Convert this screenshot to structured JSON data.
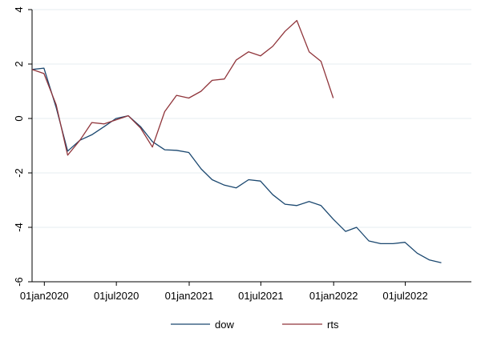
{
  "chart_data": {
    "type": "line",
    "title": "",
    "xlabel": "",
    "ylabel": "",
    "xlim": [
      "2019-12-01",
      "2022-12-15"
    ],
    "ylim": [
      -6,
      4
    ],
    "yticks": [
      -6,
      -4,
      -2,
      0,
      2,
      4
    ],
    "xticks": [
      {
        "value": "2020-01-01",
        "label": "01jan2020"
      },
      {
        "value": "2020-07-01",
        "label": "01jul2020"
      },
      {
        "value": "2021-01-01",
        "label": "01jan2021"
      },
      {
        "value": "2021-07-01",
        "label": "01jul2021"
      },
      {
        "value": "2022-01-01",
        "label": "01jan2022"
      },
      {
        "value": "2022-07-01",
        "label": "01jul2022"
      }
    ],
    "grid": "horizontal",
    "legend_position": "bottom",
    "colors": {
      "dow": "#1a476f",
      "rts": "#90353b",
      "grid": "#e6eef2"
    },
    "series": [
      {
        "name": "dow",
        "points": [
          [
            "2019-12-01",
            1.8
          ],
          [
            "2019-12-31",
            1.85
          ],
          [
            "2020-01-31",
            0.4
          ],
          [
            "2020-02-29",
            -1.2
          ],
          [
            "2020-03-31",
            -0.8
          ],
          [
            "2020-04-30",
            -0.6
          ],
          [
            "2020-05-31",
            -0.3
          ],
          [
            "2020-06-30",
            0.0
          ],
          [
            "2020-07-31",
            0.1
          ],
          [
            "2020-08-31",
            -0.3
          ],
          [
            "2020-09-30",
            -0.85
          ],
          [
            "2020-10-31",
            -1.15
          ],
          [
            "2020-11-30",
            -1.17
          ],
          [
            "2020-12-31",
            -1.25
          ],
          [
            "2021-01-31",
            -1.85
          ],
          [
            "2021-02-28",
            -2.25
          ],
          [
            "2021-03-31",
            -2.45
          ],
          [
            "2021-04-30",
            -2.55
          ],
          [
            "2021-05-31",
            -2.25
          ],
          [
            "2021-06-30",
            -2.3
          ],
          [
            "2021-07-31",
            -2.8
          ],
          [
            "2021-08-31",
            -3.15
          ],
          [
            "2021-09-30",
            -3.2
          ],
          [
            "2021-10-31",
            -3.05
          ],
          [
            "2021-11-30",
            -3.2
          ],
          [
            "2021-12-31",
            -3.7
          ],
          [
            "2022-01-31",
            -4.15
          ],
          [
            "2022-02-28",
            -4.0
          ],
          [
            "2022-03-31",
            -4.5
          ],
          [
            "2022-04-30",
            -4.6
          ],
          [
            "2022-05-31",
            -4.6
          ],
          [
            "2022-06-30",
            -4.55
          ],
          [
            "2022-07-31",
            -4.95
          ],
          [
            "2022-08-31",
            -5.2
          ],
          [
            "2022-09-30",
            -5.3
          ]
        ]
      },
      {
        "name": "rts",
        "points": [
          [
            "2019-12-01",
            1.8
          ],
          [
            "2019-12-31",
            1.65
          ],
          [
            "2020-01-31",
            0.5
          ],
          [
            "2020-02-29",
            -1.35
          ],
          [
            "2020-03-31",
            -0.8
          ],
          [
            "2020-04-30",
            -0.15
          ],
          [
            "2020-05-31",
            -0.2
          ],
          [
            "2020-06-30",
            -0.05
          ],
          [
            "2020-07-31",
            0.1
          ],
          [
            "2020-08-31",
            -0.35
          ],
          [
            "2020-09-30",
            -1.05
          ],
          [
            "2020-10-31",
            0.25
          ],
          [
            "2020-11-30",
            0.85
          ],
          [
            "2020-12-31",
            0.75
          ],
          [
            "2021-01-31",
            1.0
          ],
          [
            "2021-02-28",
            1.4
          ],
          [
            "2021-03-31",
            1.45
          ],
          [
            "2021-04-30",
            2.15
          ],
          [
            "2021-05-31",
            2.45
          ],
          [
            "2021-06-30",
            2.3
          ],
          [
            "2021-07-31",
            2.65
          ],
          [
            "2021-08-31",
            3.2
          ],
          [
            "2021-09-30",
            3.6
          ],
          [
            "2021-10-31",
            2.45
          ],
          [
            "2021-11-30",
            2.1
          ],
          [
            "2021-12-31",
            0.75
          ]
        ]
      }
    ],
    "legend": [
      {
        "name": "dow"
      },
      {
        "name": "rts"
      }
    ]
  }
}
